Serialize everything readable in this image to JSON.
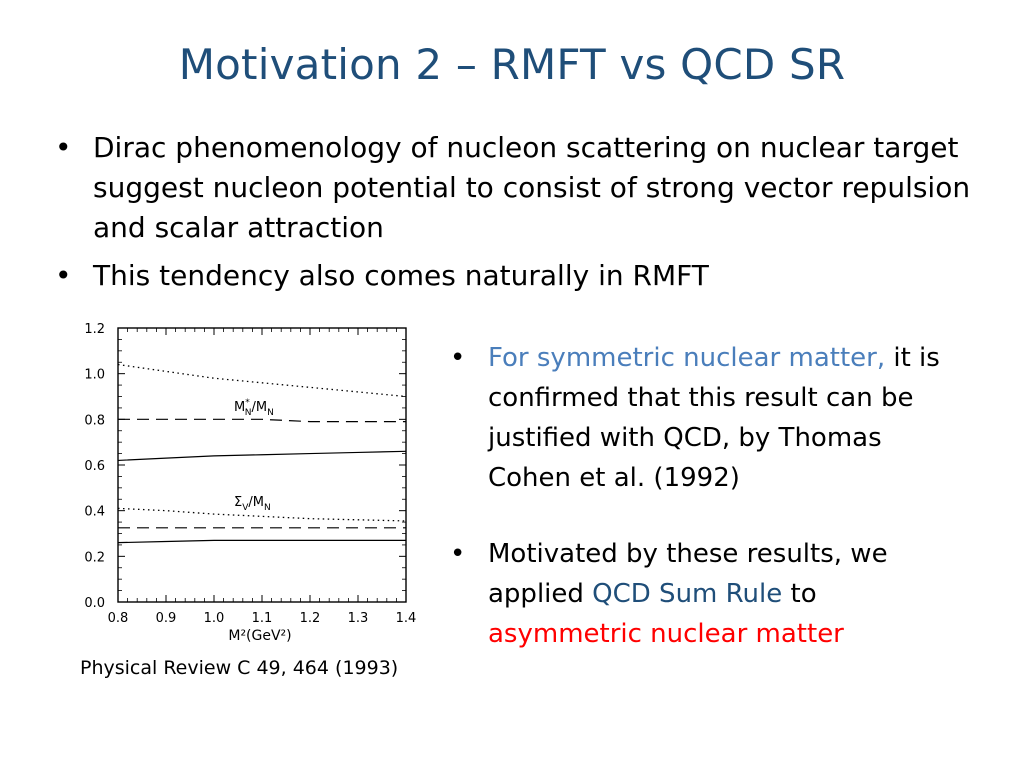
{
  "slide": {
    "title": "Motivation 2 – RMFT vs QCD SR",
    "bullets_top": [
      {
        "text": "Dirac phenomenology of nucleon scattering on nuclear target suggest nucleon potential to consist of strong vector repulsion and scalar attraction"
      },
      {
        "text": "This tendency also comes naturally in  RMFT"
      }
    ],
    "bullet_symbol": "•",
    "right_bullets": {
      "first": {
        "highlight": "For symmetric nuclear matter,",
        "rest": " it is confirmed that this result can be justified with QCD, by Thomas Cohen et al. (1992)"
      },
      "second": {
        "part1": "Motivated by these results, we applied ",
        "highlight1": "QCD Sum Rule",
        "part2": " to ",
        "highlight2": "asymmetric nuclear matter"
      }
    },
    "caption": "Physical Review C 49, 464 (1993)",
    "colors": {
      "title": "#1f4e79",
      "highlight_blue": "#4a7ebb",
      "highlight_navy": "#1f4e79",
      "highlight_red": "#ff0000"
    }
  },
  "chart_data": {
    "type": "line",
    "xlabel": "M²(GeV²)",
    "ylabel": "",
    "xlim": [
      0.8,
      1.4
    ],
    "ylim": [
      0.0,
      1.2
    ],
    "x_ticks": [
      "0.8",
      "0.9",
      "1.0",
      "1.1",
      "1.2",
      "1.3",
      "1.4"
    ],
    "y_ticks": [
      "0.0",
      "0.2",
      "0.4",
      "0.6",
      "0.8",
      "1.0",
      "1.2"
    ],
    "annotations": [
      {
        "label_main": "M",
        "label_sup": "*",
        "label_sub": "N",
        "slash": "/",
        "label_main2": "M",
        "label_sub2": "N"
      },
      {
        "label_main": "Σ",
        "label_sub": "V",
        "slash": "/",
        "label_main2": "M",
        "label_sub2": "N"
      }
    ],
    "series": [
      {
        "style": "dotted",
        "x": [
          0.8,
          0.9,
          1.0,
          1.1,
          1.2,
          1.3,
          1.4
        ],
        "values": [
          1.04,
          1.01,
          0.98,
          0.96,
          0.94,
          0.92,
          0.9
        ]
      },
      {
        "style": "dashed",
        "x": [
          0.8,
          0.9,
          1.0,
          1.1,
          1.2,
          1.3,
          1.4
        ],
        "values": [
          0.8,
          0.8,
          0.8,
          0.8,
          0.79,
          0.79,
          0.79
        ]
      },
      {
        "style": "solid",
        "x": [
          0.8,
          0.9,
          1.0,
          1.1,
          1.2,
          1.3,
          1.4
        ],
        "values": [
          0.62,
          0.63,
          0.64,
          0.645,
          0.65,
          0.655,
          0.66
        ]
      },
      {
        "style": "dotted",
        "x": [
          0.8,
          0.9,
          1.0,
          1.1,
          1.2,
          1.3,
          1.4
        ],
        "values": [
          0.41,
          0.4,
          0.385,
          0.375,
          0.365,
          0.36,
          0.355
        ]
      },
      {
        "style": "dashed",
        "x": [
          0.8,
          0.9,
          1.0,
          1.1,
          1.2,
          1.3,
          1.4
        ],
        "values": [
          0.325,
          0.325,
          0.325,
          0.325,
          0.325,
          0.325,
          0.325
        ]
      },
      {
        "style": "solid",
        "x": [
          0.8,
          0.9,
          1.0,
          1.1,
          1.2,
          1.3,
          1.4
        ],
        "values": [
          0.26,
          0.265,
          0.27,
          0.27,
          0.27,
          0.27,
          0.27
        ]
      }
    ]
  }
}
